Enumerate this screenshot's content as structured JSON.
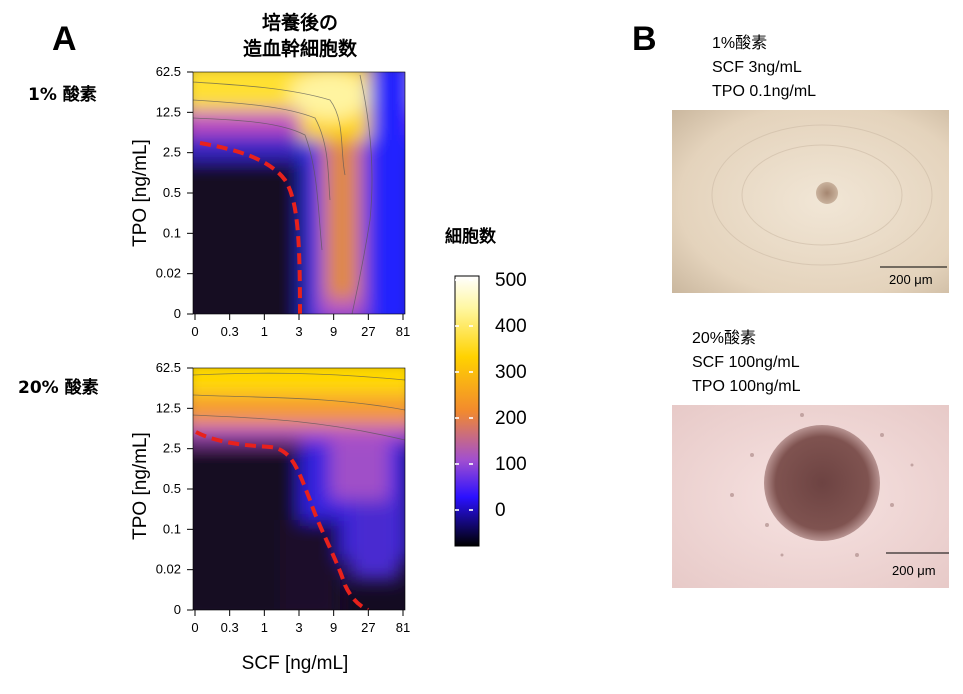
{
  "panels": {
    "a": "A",
    "b": "B"
  },
  "heatmap": {
    "title_line1": "培養後の",
    "title_line2": "造血幹細胞数",
    "top_condition": "1% 酸素",
    "bottom_condition": "20% 酸素",
    "ylabel": "TPO [ng/mL]",
    "xlabel": "SCF [ng/mL]",
    "colorbar_label": "細胞数"
  },
  "chart_data": {
    "type": "heatmap",
    "x_ticks": [
      "0",
      "0.3",
      "1",
      "3",
      "9",
      "27",
      "81"
    ],
    "y_ticks": [
      "62.5",
      "12.5",
      "2.5",
      "0.5",
      "0.1",
      "0.02",
      "0"
    ],
    "colorbar_ticks": [
      "500",
      "400",
      "300",
      "200",
      "100",
      "0"
    ],
    "colorbar_range": [
      0,
      500
    ],
    "boundary_style": "red dashed",
    "colors": {
      "boundary": "#e8211c"
    },
    "top_boundary": [
      [
        0,
        2.5
      ],
      [
        0.3,
        2.0
      ],
      [
        1,
        1.5
      ],
      [
        3,
        0.5
      ],
      [
        3,
        0.02
      ],
      [
        3,
        0
      ]
    ],
    "bottom_boundary": [
      [
        0,
        2.8
      ],
      [
        0.3,
        2.5
      ],
      [
        1,
        2.5
      ],
      [
        3,
        2.0
      ],
      [
        3,
        0.5
      ],
      [
        9,
        0.1
      ],
      [
        9,
        0.02
      ],
      [
        27,
        0
      ]
    ]
  },
  "photos": {
    "top_caption": [
      "1%酸素",
      "SCF 3ng/mL",
      "TPO 0.1ng/mL"
    ],
    "bottom_caption": [
      "20%酸素",
      "SCF 100ng/mL",
      "TPO 100ng/mL"
    ],
    "scale_label": "200 μm"
  }
}
